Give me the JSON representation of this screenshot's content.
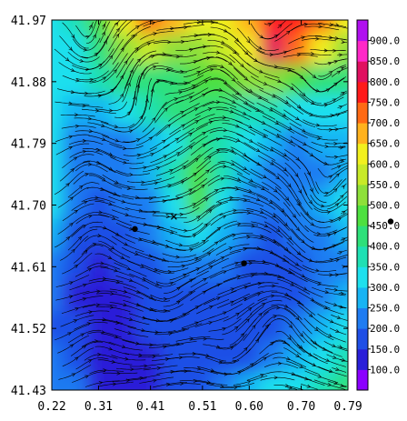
{
  "chart_data": {
    "type": "heatmap",
    "title": "",
    "xlabel": "",
    "ylabel": "",
    "xlim": [
      0.22,
      0.79
    ],
    "ylim": [
      41.43,
      41.97
    ],
    "x_ticks": [
      "0.22",
      "0.31",
      "0.41",
      "0.51",
      "0.60",
      "0.70",
      "0.79"
    ],
    "y_ticks": [
      "41.43",
      "41.52",
      "41.61",
      "41.70",
      "41.79",
      "41.88",
      "41.97"
    ],
    "colorbar": {
      "range": [
        50,
        950
      ],
      "labels": [
        "100.0",
        "150.0",
        "200.0",
        "250.0",
        "300.0",
        "350.0",
        "400.0",
        "450.0",
        "500.0",
        "550.0",
        "600.0",
        "650.0",
        "700.0",
        "750.0",
        "800.0",
        "850.0",
        "900.0"
      ],
      "colors": [
        "#8b00ff",
        "#2a1fd8",
        "#1f4fe6",
        "#1f7cf2",
        "#18b4f4",
        "#1ee0ee",
        "#1fe0b4",
        "#2ee07a",
        "#4ee040",
        "#8ee03a",
        "#c8ea28",
        "#f2f01e",
        "#ffb21e",
        "#ff6a14",
        "#ff1a1a",
        "#e01060",
        "#ff28c8",
        "#b010f0"
      ]
    },
    "field": {
      "x": [
        0.22,
        0.2675,
        0.315,
        0.3625,
        0.41,
        0.4575,
        0.505,
        0.5525,
        0.6,
        0.6475,
        0.695,
        0.7425,
        0.79
      ],
      "y": [
        41.97,
        41.925,
        41.88,
        41.835,
        41.79,
        41.745,
        41.7,
        41.655,
        41.61,
        41.565,
        41.52,
        41.475,
        41.43
      ],
      "values": [
        [
          330,
          380,
          480,
          620,
          700,
          660,
          600,
          640,
          680,
          770,
          780,
          720,
          620
        ],
        [
          300,
          340,
          420,
          500,
          560,
          540,
          520,
          560,
          620,
          820,
          700,
          600,
          520
        ],
        [
          300,
          320,
          360,
          400,
          430,
          440,
          450,
          470,
          500,
          520,
          480,
          440,
          400
        ],
        [
          300,
          280,
          280,
          320,
          360,
          400,
          420,
          400,
          380,
          360,
          330,
          320,
          330
        ],
        [
          300,
          240,
          220,
          240,
          280,
          340,
          420,
          380,
          300,
          260,
          240,
          250,
          280
        ],
        [
          320,
          230,
          200,
          210,
          250,
          360,
          460,
          380,
          260,
          230,
          220,
          230,
          250
        ],
        [
          300,
          210,
          190,
          200,
          240,
          330,
          450,
          300,
          230,
          210,
          220,
          280,
          330
        ],
        [
          260,
          190,
          170,
          180,
          210,
          260,
          300,
          260,
          210,
          190,
          200,
          230,
          260
        ],
        [
          230,
          150,
          140,
          150,
          170,
          200,
          210,
          200,
          180,
          170,
          190,
          200,
          230
        ],
        [
          200,
          140,
          130,
          140,
          150,
          170,
          190,
          170,
          160,
          170,
          190,
          220,
          260
        ],
        [
          190,
          160,
          120,
          130,
          150,
          160,
          170,
          160,
          150,
          180,
          210,
          270,
          300
        ],
        [
          200,
          180,
          120,
          110,
          140,
          160,
          170,
          170,
          180,
          230,
          290,
          340,
          380
        ],
        [
          220,
          200,
          130,
          100,
          130,
          150,
          180,
          220,
          250,
          300,
          340,
          380,
          420
        ]
      ]
    },
    "markers": [
      {
        "x": 0.38,
        "y": 41.665,
        "symbol": "dot"
      },
      {
        "x": 0.59,
        "y": 41.615,
        "symbol": "dot"
      },
      {
        "x": 0.455,
        "y": 41.683,
        "symbol": "x"
      }
    ],
    "colorbar_marker": {
      "value": 460,
      "symbol": "dot"
    }
  }
}
